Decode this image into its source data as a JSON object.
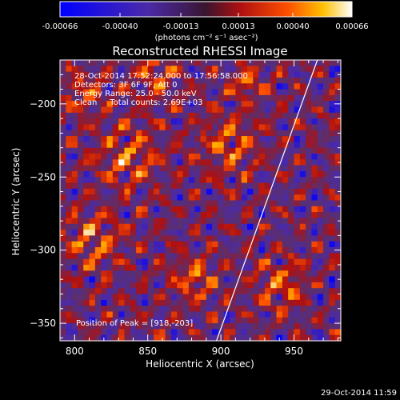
{
  "colorbar": {
    "ticks": [
      "-0.00066",
      "-0.00040",
      "-0.00013",
      "0.00013",
      "0.00040",
      "0.00066"
    ],
    "unit_label": "(photons cm⁻² s⁻¹ asec⁻²)"
  },
  "chart_data": {
    "type": "heatmap",
    "title": "Reconstructed RHESSI Image",
    "xlabel": "Heliocentric X (arcsec)",
    "ylabel": "Heliocentric Y (arcsec)",
    "xlim": [
      790,
      982
    ],
    "ylim": [
      -362,
      -170
    ],
    "x_ticks": [
      800,
      850,
      900,
      950
    ],
    "y_ticks": [
      -200,
      -250,
      -300,
      -350
    ],
    "value_range": [
      -0.00066,
      0.00066
    ],
    "colormap": [
      "#0000ff",
      "#4b2aa8",
      "#5a2f70",
      "#b01010",
      "#ff5000",
      "#ffb000",
      "#ffffff"
    ],
    "annotations": [
      "28-Oct-2014 17:52:24.000 to 17:56:58.000",
      "Detectors: 3F 6F 9F, Att 0",
      "Energy Range: 25.0 - 50.0 keV",
      "Clean     Total counts: 2.69E+03"
    ],
    "peak_label": "Position of Peak = [918,-203]",
    "limb_line": {
      "x1": 897,
      "y1": -362,
      "x2": 966,
      "y2": -170
    }
  },
  "footer": {
    "timestamp": "29-Oct-2014 11:59"
  }
}
